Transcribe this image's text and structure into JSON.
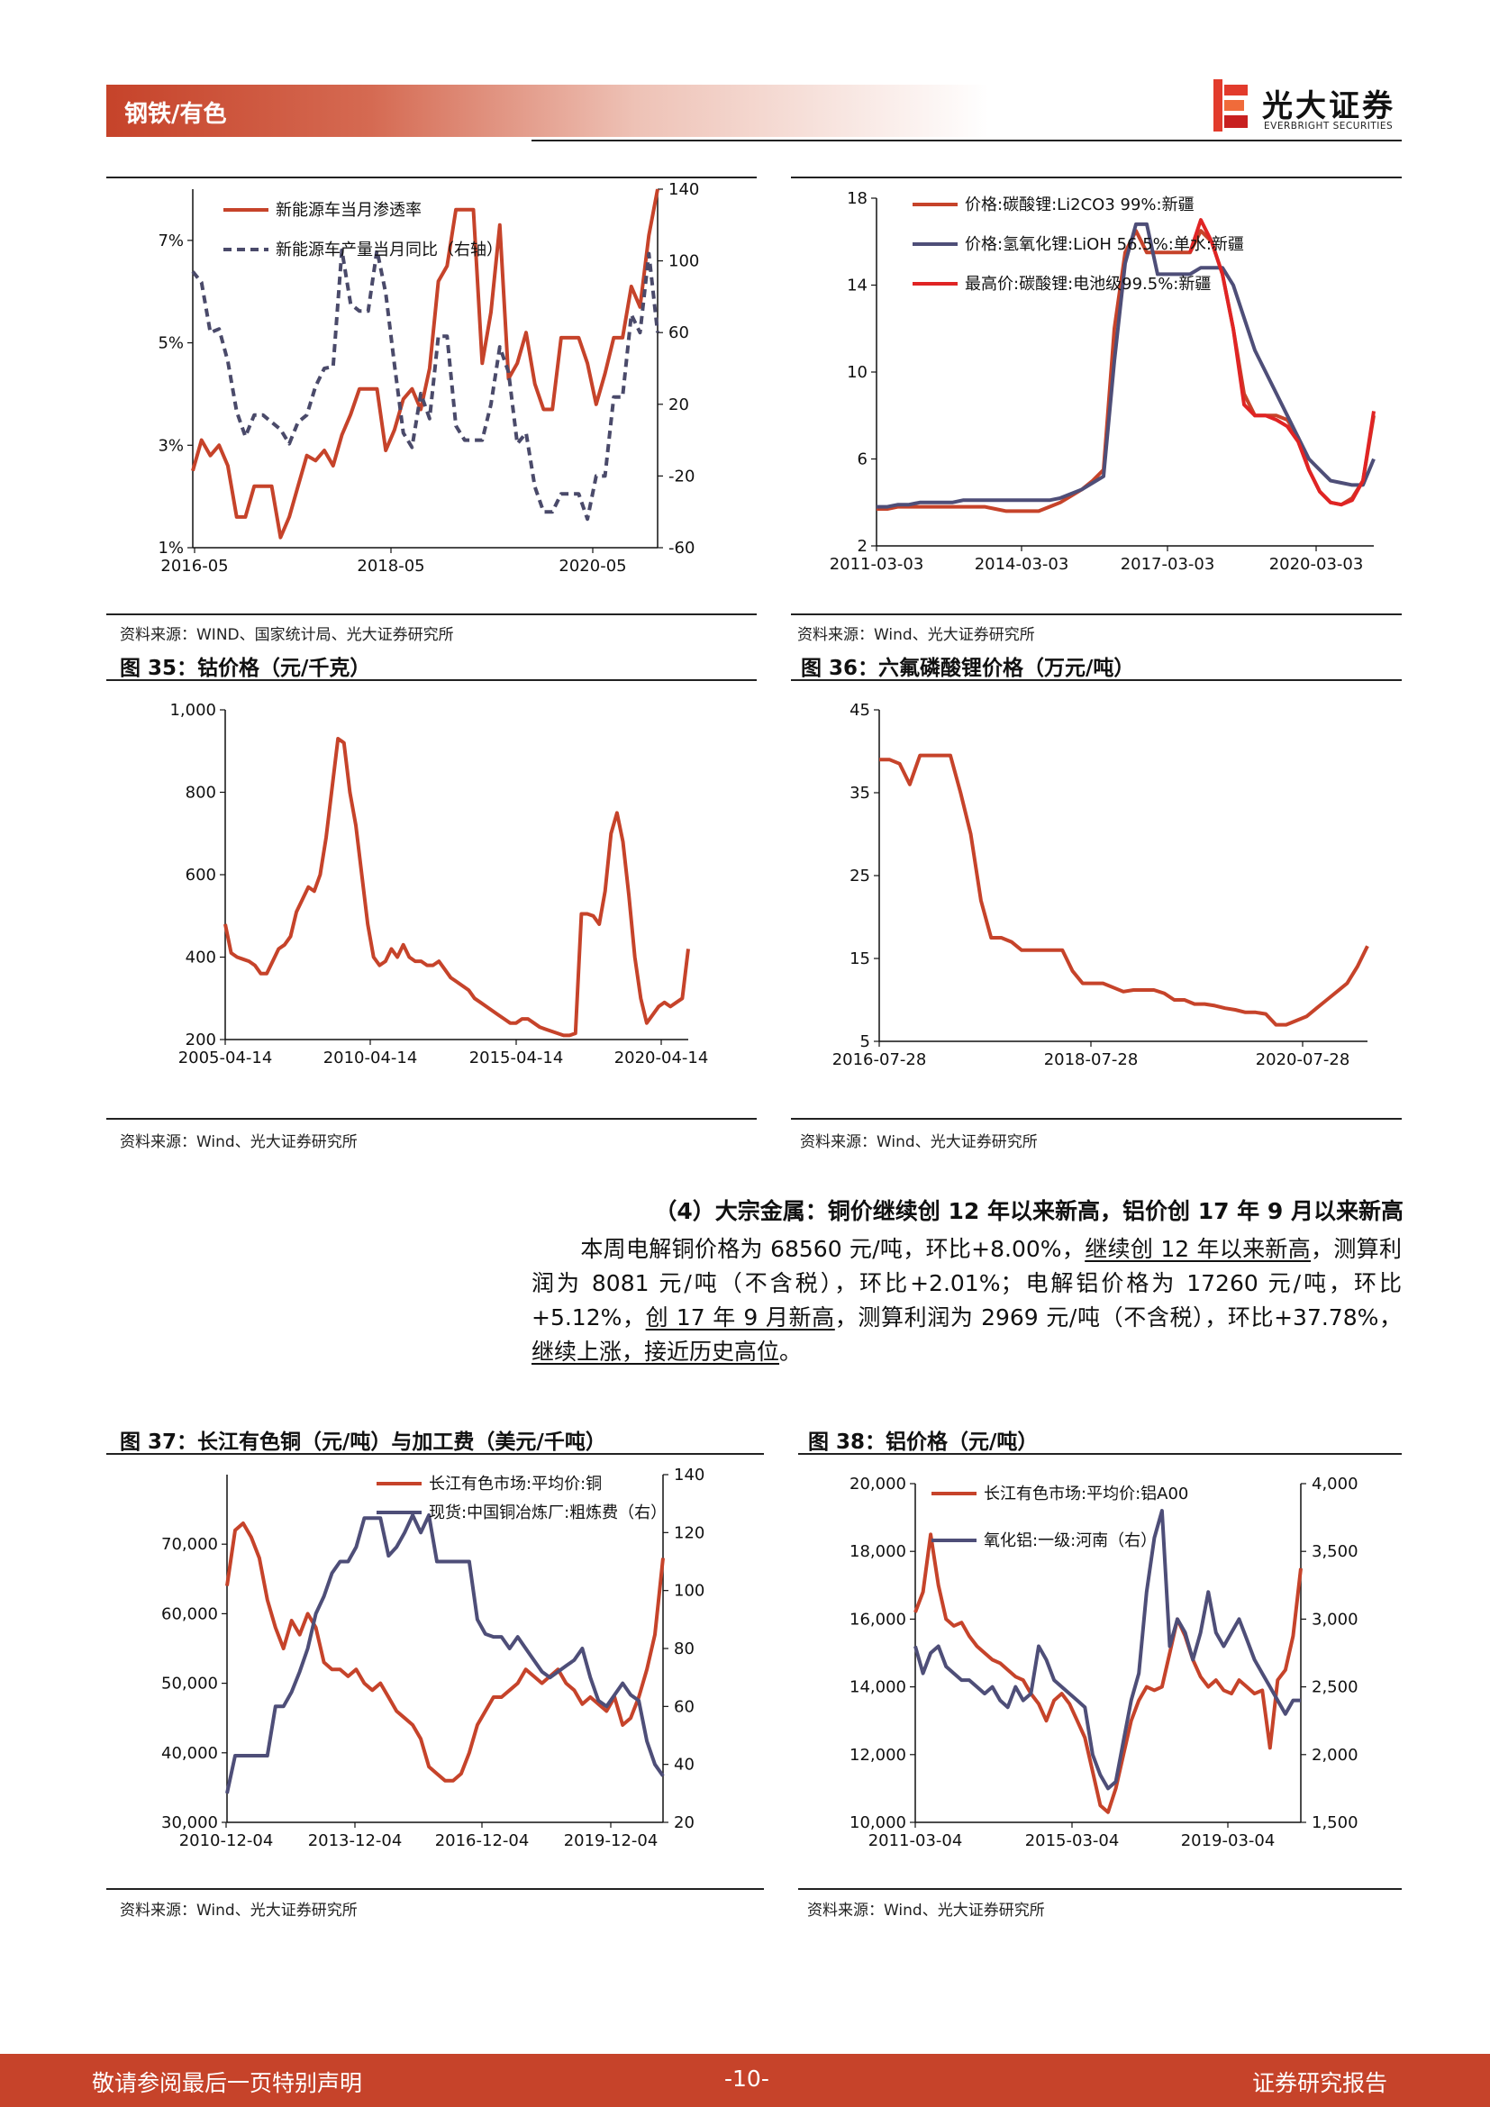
{
  "header": {
    "section": "钢铁/有色",
    "logo_cn": "光大证券",
    "logo_en": "EVERBRIGHT SECURITIES",
    "brand_color": "#c6432a"
  },
  "figures": {
    "fig33": {
      "source": "资料来源：WIND、国家统计局、光大证券研究所",
      "chart_data": {
        "type": "line",
        "x_ticks": [
          "2016-05",
          "2018-05",
          "2020-05"
        ],
        "y_left_ticks": [
          "1%",
          "3%",
          "5%",
          "7%"
        ],
        "y_right_ticks": [
          "-60",
          "-20",
          "20",
          "60",
          "100",
          "140"
        ],
        "y_left_range": [
          1,
          8
        ],
        "y_right_range": [
          -60,
          140
        ],
        "series": [
          {
            "name": "新能源车当月渗透率",
            "axis": "left",
            "color": "#c6432a",
            "style": "solid",
            "values": [
              2.5,
              3.1,
              2.8,
              3.0,
              2.6,
              1.6,
              1.6,
              2.2,
              2.2,
              2.2,
              1.2,
              1.6,
              2.2,
              2.8,
              2.7,
              2.9,
              2.6,
              3.2,
              3.6,
              4.1,
              4.1,
              4.1,
              2.9,
              3.3,
              3.9,
              4.1,
              3.7,
              4.5,
              6.2,
              6.5,
              7.6,
              7.6,
              7.6,
              4.6,
              5.6,
              7.3,
              4.3,
              4.6,
              5.2,
              4.2,
              3.7,
              3.7,
              5.1,
              5.1,
              5.1,
              4.6,
              3.8,
              4.4,
              5.1,
              5.1,
              6.1,
              5.7,
              7.1,
              8.0
            ]
          },
          {
            "name": "新能源车产量当月同比（右轴）",
            "axis": "right",
            "color": "#4a4a6a",
            "style": "dashed",
            "values": [
              94,
              88,
              60,
              62,
              44,
              16,
              2,
              14,
              14,
              10,
              6,
              -2,
              10,
              14,
              30,
              40,
              41,
              106,
              76,
              72,
              72,
              106,
              82,
              42,
              4,
              -4,
              26,
              12,
              58,
              58,
              8,
              0,
              0,
              0,
              20,
              52,
              38,
              -2,
              4,
              -26,
              -40,
              -40,
              -30,
              -30,
              -30,
              -44,
              -20,
              -20,
              24,
              24,
              70,
              60,
              104,
              60
            ]
          }
        ]
      }
    },
    "fig34": {
      "source": "资料来源：Wind、光大证券研究所",
      "chart_data": {
        "type": "line",
        "x_ticks": [
          "2011-03-03",
          "2014-03-03",
          "2017-03-03",
          "2020-03-03"
        ],
        "y_ticks": [
          "2",
          "6",
          "10",
          "14",
          "18"
        ],
        "y_range": [
          2,
          18
        ],
        "series": [
          {
            "name": "价格:碳酸锂:Li2CO3 99%:新疆",
            "color": "#c6432a",
            "values": [
              3.7,
              3.7,
              3.8,
              3.8,
              3.8,
              3.8,
              3.8,
              3.8,
              3.8,
              3.8,
              3.8,
              3.7,
              3.6,
              3.6,
              3.6,
              3.6,
              3.8,
              4.0,
              4.3,
              4.6,
              5.0,
              5.5,
              12,
              15.5,
              16.5,
              15.5,
              15.5,
              15.5,
              15.5,
              15.5,
              16.5,
              16,
              14.5,
              12,
              9,
              8,
              8,
              8,
              7.8,
              7,
              5.5,
              4.5,
              4,
              3.9,
              4.2,
              5,
              8
            ]
          },
          {
            "name": "价格:氢氧化锂:LiOH 56.5%:单水:新疆",
            "color": "#4e4e78",
            "values": [
              3.8,
              3.8,
              3.9,
              3.9,
              4.0,
              4.0,
              4.0,
              4.0,
              4.1,
              4.1,
              4.1,
              4.1,
              4.1,
              4.1,
              4.1,
              4.1,
              4.1,
              4.2,
              4.4,
              4.6,
              4.9,
              5.2,
              10.5,
              15,
              16.8,
              16.8,
              14.5,
              14.5,
              14.5,
              14.5,
              14.8,
              14.8,
              14.8,
              14,
              12.5,
              11,
              10,
              9,
              8,
              7,
              6,
              5.5,
              5,
              4.9,
              4.8,
              4.8,
              6
            ]
          },
          {
            "name": "最高价:碳酸锂:电池级99.5%:新疆",
            "color": "#e02424",
            "values": [
              null,
              null,
              null,
              null,
              null,
              null,
              null,
              null,
              null,
              null,
              null,
              null,
              null,
              null,
              null,
              null,
              null,
              null,
              null,
              null,
              null,
              null,
              null,
              null,
              null,
              null,
              null,
              null,
              null,
              15.5,
              17,
              16,
              14.5,
              12,
              8.5,
              8,
              8,
              7.8,
              7.5,
              6.8,
              5.5,
              4.5,
              4,
              3.9,
              4.1,
              5,
              8.2
            ]
          }
        ]
      }
    },
    "fig35": {
      "title": "图 35：钴价格（元/千克）",
      "source": "资料来源：Wind、光大证券研究所",
      "chart_data": {
        "type": "line",
        "x_ticks": [
          "2005-04-14",
          "2010-04-14",
          "2015-04-14",
          "2020-04-14"
        ],
        "y_ticks": [
          "200",
          "400",
          "600",
          "800",
          "1,000"
        ],
        "y_range": [
          200,
          1000
        ],
        "series": [
          {
            "name": "钴价格",
            "color": "#c6432a",
            "values": [
              480,
              410,
              400,
              395,
              390,
              380,
              360,
              360,
              390,
              420,
              430,
              450,
              510,
              540,
              570,
              560,
              600,
              690,
              810,
              930,
              920,
              800,
              720,
              600,
              480,
              400,
              380,
              390,
              420,
              400,
              430,
              400,
              390,
              390,
              380,
              380,
              390,
              370,
              350,
              340,
              330,
              320,
              300,
              290,
              280,
              270,
              260,
              250,
              240,
              240,
              250,
              250,
              240,
              230,
              225,
              220,
              215,
              210,
              210,
              215,
              505,
              505,
              500,
              480,
              560,
              700,
              750,
              680,
              550,
              400,
              300,
              240,
              260,
              280,
              290,
              280,
              290,
              300,
              420
            ]
          }
        ]
      }
    },
    "fig36": {
      "title": "图 36：六氟磷酸锂价格（万元/吨）",
      "source": "资料来源：Wind、光大证券研究所",
      "chart_data": {
        "type": "line",
        "x_ticks": [
          "2016-07-28",
          "2018-07-28",
          "2020-07-28"
        ],
        "y_ticks": [
          "5",
          "15",
          "25",
          "35",
          "45"
        ],
        "y_range": [
          5,
          45
        ],
        "series": [
          {
            "name": "六氟磷酸锂价格",
            "color": "#c6432a",
            "values": [
              39,
              39,
              38.5,
              36,
              39.5,
              39.5,
              39.5,
              39.5,
              35,
              30,
              22,
              17.5,
              17.5,
              17,
              16,
              16,
              16,
              16,
              16,
              13.5,
              12,
              12,
              12,
              11.5,
              11,
              11.2,
              11.2,
              11.2,
              10.8,
              10,
              10,
              9.5,
              9.5,
              9.3,
              9,
              8.8,
              8.5,
              8.5,
              8.3,
              7,
              7,
              7.5,
              8,
              9,
              10,
              11,
              12,
              14,
              16.5
            ]
          }
        ]
      }
    },
    "fig37": {
      "title": "图 37：长江有色铜（元/吨）与加工费（美元/千吨）",
      "source": "资料来源：Wind、光大证券研究所",
      "chart_data": {
        "type": "line",
        "x_ticks": [
          "2010-12-04",
          "2013-12-04",
          "2016-12-04",
          "2019-12-04"
        ],
        "y_left_ticks": [
          "30,000",
          "40,000",
          "50,000",
          "60,000",
          "70,000"
        ],
        "y_right_ticks": [
          "20",
          "40",
          "60",
          "80",
          "100",
          "120",
          "140"
        ],
        "y_left_range": [
          30000,
          80000
        ],
        "y_right_range": [
          20,
          140
        ],
        "series": [
          {
            "name": "长江有色市场:平均价:铜",
            "axis": "left",
            "color": "#c6432a",
            "values": [
              64000,
              72000,
              73000,
              71000,
              68000,
              62000,
              58000,
              55000,
              59000,
              57000,
              60000,
              58000,
              53000,
              52000,
              52000,
              51000,
              52000,
              50000,
              49000,
              50000,
              48000,
              46000,
              45000,
              44000,
              42000,
              38000,
              37000,
              36000,
              36000,
              37000,
              40000,
              44000,
              46000,
              48000,
              48000,
              49000,
              50000,
              52000,
              51000,
              50000,
              51000,
              52000,
              50000,
              49000,
              47000,
              48000,
              47000,
              46000,
              48000,
              44000,
              45000,
              48000,
              52000,
              57000,
              68000
            ]
          },
          {
            "name": "现货:中国铜冶炼厂:粗炼费（右）",
            "axis": "right",
            "color": "#4e4e78",
            "values": [
              30,
              43,
              43,
              43,
              43,
              43,
              60,
              60,
              65,
              72,
              80,
              92,
              98,
              106,
              110,
              110,
              115,
              125,
              125,
              125,
              112,
              115,
              120,
              126,
              120,
              126,
              110,
              110,
              110,
              110,
              110,
              90,
              85,
              84,
              84,
              80,
              84,
              80,
              76,
              72,
              70,
              72,
              74,
              76,
              80,
              70,
              62,
              60,
              64,
              68,
              64,
              62,
              48,
              40,
              36
            ]
          }
        ]
      }
    },
    "fig38": {
      "title": "图 38：铝价格（元/吨）",
      "source": "资料来源：Wind、光大证券研究所",
      "chart_data": {
        "type": "line",
        "x_ticks": [
          "2011-03-04",
          "2015-03-04",
          "2019-03-04"
        ],
        "y_left_ticks": [
          "10,000",
          "12,000",
          "14,000",
          "16,000",
          "18,000",
          "20,000"
        ],
        "y_right_ticks": [
          "1,500",
          "2,000",
          "2,500",
          "3,000",
          "3,500",
          "4,000"
        ],
        "y_left_range": [
          10000,
          20000
        ],
        "y_right_range": [
          1500,
          4000
        ],
        "series": [
          {
            "name": "长江有色市场:平均价:铝A00",
            "axis": "left",
            "color": "#c6432a",
            "values": [
              16200,
              16800,
              18500,
              17000,
              16000,
              15800,
              15900,
              15500,
              15200,
              15000,
              14800,
              14700,
              14500,
              14300,
              14200,
              13800,
              13500,
              13000,
              13600,
              13800,
              13500,
              13000,
              12500,
              11500,
              10500,
              10300,
              11000,
              12000,
              13000,
              13600,
              14000,
              13900,
              14000,
              15000,
              16000,
              15500,
              14800,
              14300,
              14000,
              14200,
              13900,
              13800,
              14200,
              14000,
              13800,
              13900,
              12200,
              14200,
              14500,
              15500,
              17500
            ]
          },
          {
            "name": "氧化铝:一级:河南（右）",
            "axis": "right",
            "color": "#4e4e78",
            "values": [
              2800,
              2600,
              2750,
              2800,
              2650,
              2600,
              2550,
              2550,
              2500,
              2450,
              2500,
              2400,
              2350,
              2500,
              2400,
              2450,
              2800,
              2700,
              2550,
              2500,
              2450,
              2400,
              2350,
              2000,
              1850,
              1750,
              1800,
              2100,
              2400,
              2600,
              3200,
              3600,
              3800,
              2800,
              3000,
              2900,
              2700,
              2900,
              3200,
              2900,
              2800,
              2900,
              3000,
              2850,
              2700,
              2600,
              2500,
              2400,
              2300,
              2400,
              2400
            ]
          }
        ]
      }
    }
  },
  "section": {
    "heading": "（4）大宗金属：铜价继续创 12 年以来新高，铝价创 17 年 9 月以来新高",
    "p1": "本周电解铜价格为 68560 元/吨，环比+8.00%，",
    "p1_u": "继续创 12 年以来新高",
    "p2": "，测算利润为 8081 元/吨（不含税），环比+2.01%；电解铝价格为 17260 元/吨，环比+5.12%，",
    "p2_u": "创 17 年 9 月新高",
    "p3": "，测算利润为 2969 元/吨（不含税），环比+37.78%，",
    "p3_u": "继续上涨，接近历史高位",
    "p4": "。"
  },
  "footer": {
    "left": "敬请参阅最后一页特别声明",
    "page": "-10-",
    "right": "证券研究报告"
  }
}
